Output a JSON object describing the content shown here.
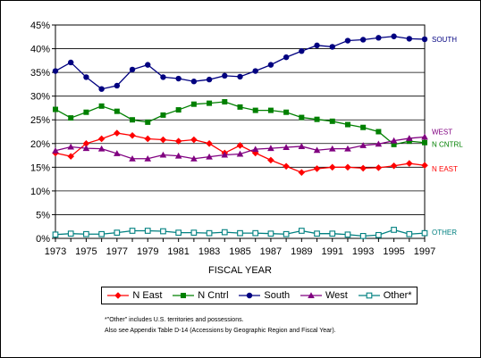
{
  "chart_data": {
    "type": "line",
    "xlabel": "FISCAL YEAR",
    "ylabel": "",
    "ylim": [
      0,
      45
    ],
    "yticks": [
      "0%",
      "5%",
      "10%",
      "15%",
      "20%",
      "25%",
      "30%",
      "35%",
      "40%",
      "45%"
    ],
    "xlim": [
      1973,
      1997
    ],
    "xticks": [
      "1973",
      "1975",
      "1977",
      "1979",
      "1981",
      "1983",
      "1985",
      "1987",
      "1989",
      "1991",
      "1993",
      "1995",
      "1997"
    ],
    "grid": "horizontal",
    "legend": "bottom",
    "x": [
      1973,
      1974,
      1975,
      1976,
      1977,
      1978,
      1979,
      1980,
      1981,
      1982,
      1983,
      1984,
      1985,
      1986,
      1987,
      1988,
      1989,
      1990,
      1991,
      1992,
      1993,
      1994,
      1995,
      1996,
      1997
    ],
    "series": [
      {
        "name": "N East",
        "label": "N EAST",
        "color": "#ff0000",
        "marker": "diamond",
        "values": [
          18.0,
          17.3,
          20.0,
          21.0,
          22.2,
          21.7,
          21.0,
          20.8,
          20.5,
          20.8,
          20.0,
          18.0,
          19.6,
          18.0,
          16.5,
          15.2,
          13.9,
          14.7,
          15.0,
          15.0,
          14.8,
          14.9,
          15.3,
          15.8,
          15.4
        ]
      },
      {
        "name": "N Cntrl",
        "label": "N CNTRL",
        "color": "#008000",
        "marker": "square",
        "values": [
          27.2,
          25.4,
          26.6,
          27.9,
          26.8,
          25.0,
          24.5,
          26.0,
          27.1,
          28.3,
          28.5,
          28.8,
          27.7,
          27.0,
          27.0,
          26.6,
          25.5,
          25.1,
          24.7,
          24.0,
          23.4,
          22.5,
          19.8,
          20.5,
          20.2
        ]
      },
      {
        "name": "South",
        "label": "SOUTH",
        "color": "#000080",
        "marker": "circle",
        "values": [
          35.3,
          37.1,
          34.0,
          31.5,
          32.2,
          35.6,
          36.6,
          34.0,
          33.7,
          33.1,
          33.5,
          34.3,
          34.1,
          35.3,
          36.6,
          38.2,
          39.5,
          40.7,
          40.4,
          41.7,
          41.9,
          42.3,
          42.6,
          42.1,
          42.0
        ]
      },
      {
        "name": "West",
        "label": "WEST",
        "color": "#800080",
        "marker": "triangle",
        "values": [
          18.5,
          19.3,
          19.0,
          18.9,
          17.9,
          16.8,
          16.8,
          17.6,
          17.4,
          16.8,
          17.2,
          17.6,
          17.8,
          18.8,
          19.0,
          19.2,
          19.4,
          18.6,
          18.9,
          18.9,
          19.6,
          19.9,
          20.6,
          21.1,
          21.4
        ]
      },
      {
        "name": "Other*",
        "label": "OTHER",
        "color": "#008080",
        "marker": "open-square",
        "values": [
          0.8,
          1.0,
          0.9,
          0.9,
          1.2,
          1.6,
          1.6,
          1.5,
          1.2,
          1.2,
          1.1,
          1.3,
          1.1,
          1.1,
          1.0,
          0.9,
          1.6,
          1.0,
          1.0,
          0.8,
          0.5,
          0.7,
          1.8,
          0.9,
          1.1
        ]
      }
    ],
    "notes": [
      "*\"Other\" includes U.S. territories and possessions.",
      "Also see Appendix Table D-14 (Accessions by Geographic Region and Fiscal Year)."
    ]
  }
}
